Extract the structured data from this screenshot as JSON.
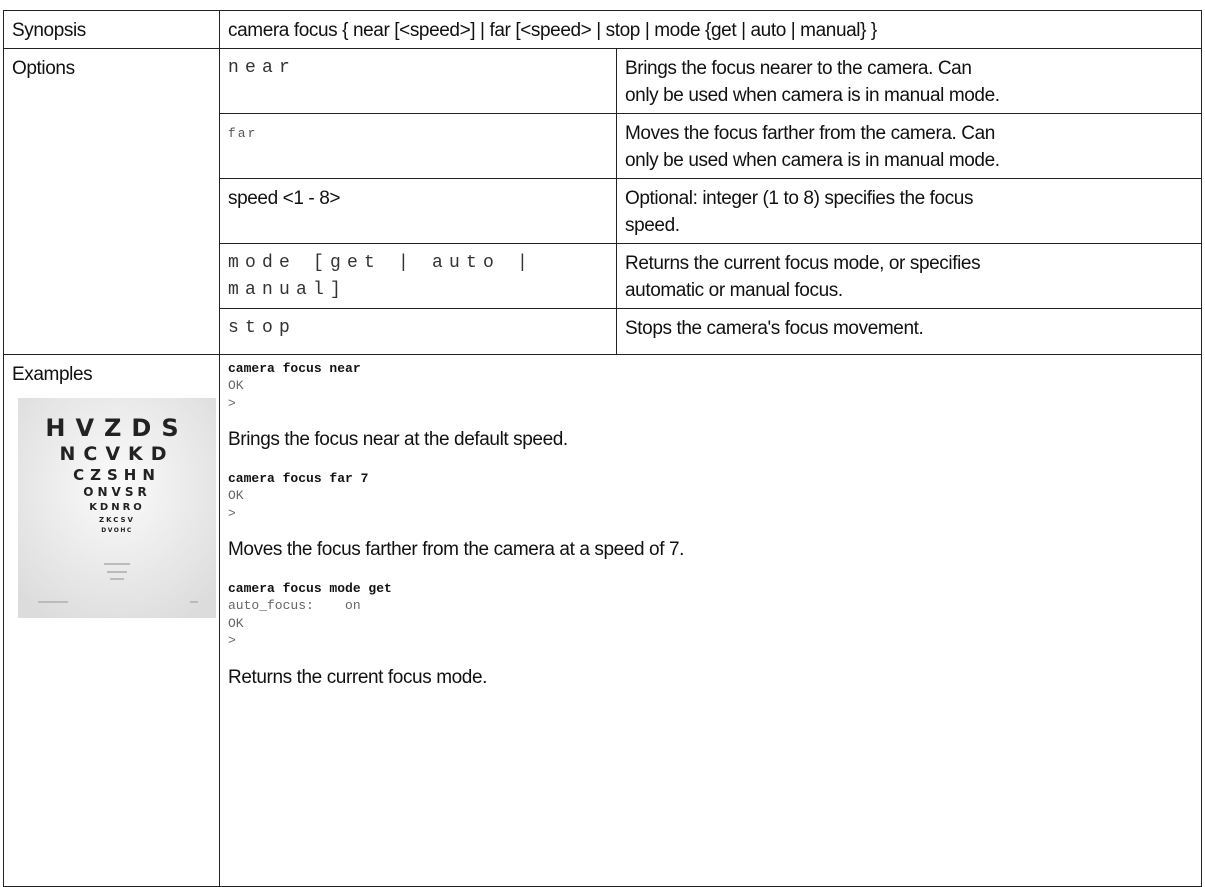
{
  "table": {
    "synopsis": {
      "label": "Synopsis",
      "text": "camera focus { near [<speed>] | far [<speed> | stop | mode {get | auto | manual} }"
    },
    "options": {
      "label": "Options",
      "items": [
        {
          "term": [
            "near"
          ],
          "description": [
            "Brings the focus nearer to the camera. Can",
            "only be used when camera is in manual mode."
          ]
        },
        {
          "term": [
            "far"
          ],
          "description": [
            "Moves the focus farther from the camera. Can",
            "only be used when camera is in manual mode."
          ]
        },
        {
          "term": [
            "speed <1 - 8>"
          ],
          "description": [
            "Optional: integer (1 to 8)  specifies the focus",
            "speed."
          ]
        },
        {
          "term": [
            "mode [get | auto |",
            "manual]"
          ],
          "description": [
            "Returns the current focus mode, or specifies",
            "automatic or manual focus."
          ]
        },
        {
          "term": [
            "stop"
          ],
          "description": [
            "Stops the camera's focus movement."
          ]
        }
      ]
    },
    "examples": {
      "label": "Examples",
      "eye_chart": [
        "HVZDS",
        "NCVKD",
        "CZSHN",
        "ONVSR",
        "KDNRO",
        "ZKCSV",
        "DVOHC"
      ],
      "items": [
        {
          "command": "camera focus near",
          "output": [
            "OK",
            ">"
          ],
          "description": "Brings the focus near at the default speed."
        },
        {
          "command": "camera focus far 7",
          "output": [
            "OK",
            ">"
          ],
          "description": "Moves the focus farther from the camera at a speed of 7."
        },
        {
          "command": "camera focus mode get",
          "output": [
            "auto_focus:    on",
            "OK",
            ">"
          ],
          "description": "Returns the current focus mode."
        }
      ]
    }
  }
}
